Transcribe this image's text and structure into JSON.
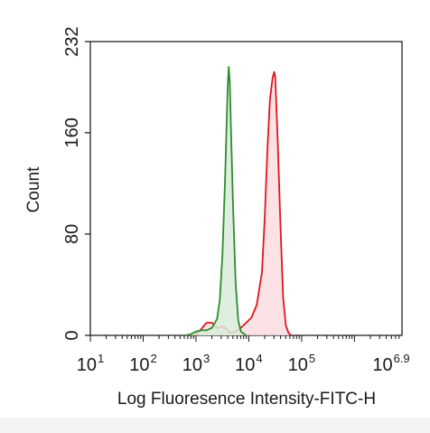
{
  "chart_data": {
    "type": "area",
    "xlabel": "Log Fluoresence Intensity-FITC-H",
    "ylabel": "Count",
    "x_scale": "log",
    "xlim": [
      10,
      7943282
    ],
    "ylim": [
      0,
      232
    ],
    "grid": false,
    "legend": "none",
    "x_ticks": [
      {
        "base": "10",
        "exp": "1",
        "value": 10
      },
      {
        "base": "10",
        "exp": "2",
        "value": 100
      },
      {
        "base": "10",
        "exp": "3",
        "value": 1000
      },
      {
        "base": "10",
        "exp": "4",
        "value": 10000
      },
      {
        "base": "10",
        "exp": "5",
        "value": 100000
      },
      {
        "base": "10",
        "exp": "6.9",
        "value": 7943282
      }
    ],
    "y_ticks": [
      "0",
      "80",
      "160",
      "232"
    ],
    "series": [
      {
        "color": "#2e8b2e",
        "fill": "#d9ecd9",
        "points": [
          [
            630,
            0
          ],
          [
            800,
            1
          ],
          [
            1000,
            3
          ],
          [
            1260,
            4
          ],
          [
            1580,
            4
          ],
          [
            2000,
            6
          ],
          [
            2510,
            13
          ],
          [
            2820,
            28
          ],
          [
            3160,
            63
          ],
          [
            3550,
            122
          ],
          [
            3800,
            168
          ],
          [
            3980,
            195
          ],
          [
            4170,
            212
          ],
          [
            4370,
            200
          ],
          [
            4570,
            168
          ],
          [
            5010,
            104
          ],
          [
            5620,
            42
          ],
          [
            6310,
            12
          ],
          [
            7080,
            3
          ],
          [
            8910,
            0
          ]
        ]
      },
      {
        "color": "#e0151f",
        "fill": "#fcdde0",
        "points": [
          [
            1000,
            0
          ],
          [
            1200,
            4
          ],
          [
            1580,
            10
          ],
          [
            2000,
            10
          ],
          [
            2510,
            6
          ],
          [
            3160,
            7
          ],
          [
            3550,
            6
          ],
          [
            4470,
            2
          ],
          [
            5620,
            3
          ],
          [
            7080,
            6
          ],
          [
            8910,
            10
          ],
          [
            11220,
            14
          ],
          [
            14130,
            24
          ],
          [
            17780,
            50
          ],
          [
            20000,
            92
          ],
          [
            22390,
            145
          ],
          [
            25120,
            186
          ],
          [
            28180,
            203
          ],
          [
            30200,
            208
          ],
          [
            31620,
            204
          ],
          [
            35480,
            150
          ],
          [
            39810,
            86
          ],
          [
            44670,
            30
          ],
          [
            50120,
            8
          ],
          [
            56230,
            2
          ],
          [
            63100,
            0
          ]
        ]
      }
    ]
  }
}
